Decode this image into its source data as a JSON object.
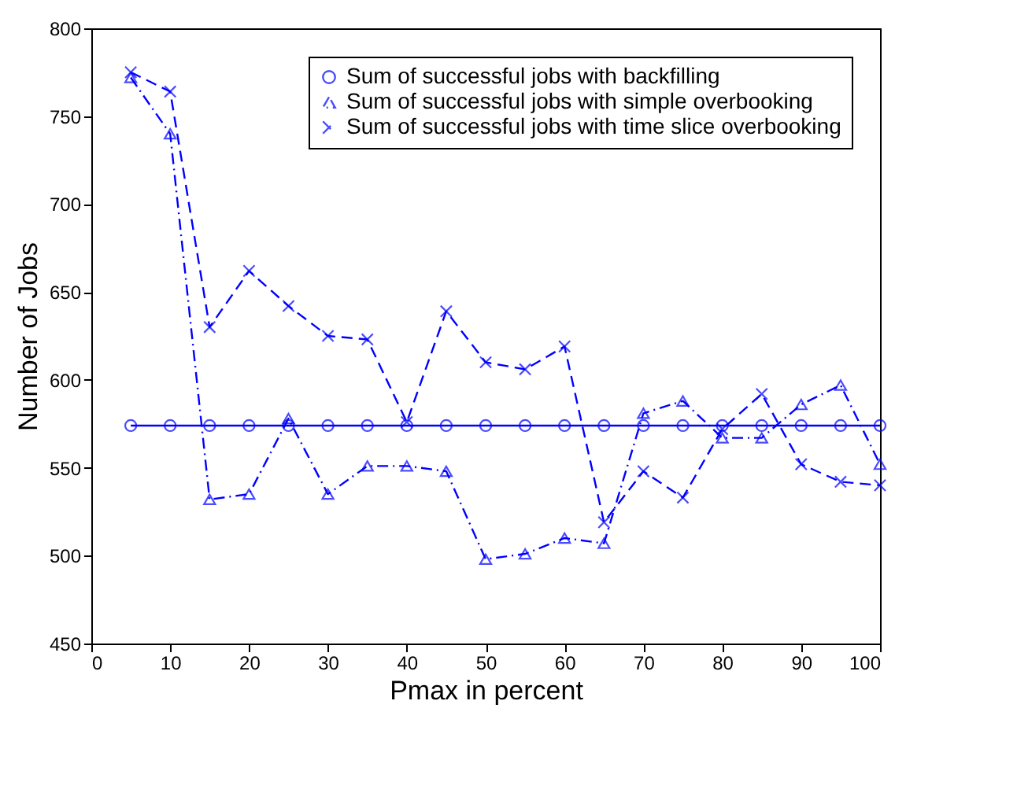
{
  "chart_data": {
    "type": "line",
    "xlabel": "Pmax in percent",
    "ylabel": "Number of Jobs",
    "x": [
      5,
      10,
      15,
      20,
      25,
      30,
      35,
      40,
      45,
      50,
      55,
      60,
      65,
      70,
      75,
      80,
      85,
      90,
      95,
      100
    ],
    "series": [
      {
        "name": "Sum of successful jobs with backfilling",
        "color": "#0000ff",
        "marker": "circle",
        "line_style": "solid",
        "values": [
          574,
          574,
          574,
          574,
          574,
          574,
          574,
          574,
          574,
          574,
          574,
          574,
          574,
          574,
          574,
          574,
          574,
          574,
          574,
          574
        ]
      },
      {
        "name": "Sum of successful jobs with simple overbooking",
        "color": "#0000ff",
        "marker": "triangle",
        "line_style": "dashdot",
        "values": [
          772,
          740,
          532,
          535,
          578,
          535,
          551,
          551,
          548,
          498,
          501,
          510,
          507,
          581,
          588,
          567,
          567,
          586,
          597,
          552
        ]
      },
      {
        "name": "Sum of successful jobs with time slice overbooking",
        "color": "#0000ff",
        "marker": "cross",
        "line_style": "dashed",
        "values": [
          775,
          764,
          630,
          662,
          642,
          625,
          623,
          576,
          639,
          610,
          606,
          619,
          519,
          548,
          533,
          572,
          592,
          552,
          542,
          540
        ]
      }
    ],
    "xlim": [
      0,
      100
    ],
    "xticks": [
      0,
      10,
      20,
      30,
      40,
      50,
      60,
      70,
      80,
      90,
      100
    ],
    "ylim": [
      450,
      800
    ],
    "yticks": [
      450,
      500,
      550,
      600,
      650,
      700,
      750,
      800
    ],
    "grid": false,
    "legend": "top right"
  }
}
